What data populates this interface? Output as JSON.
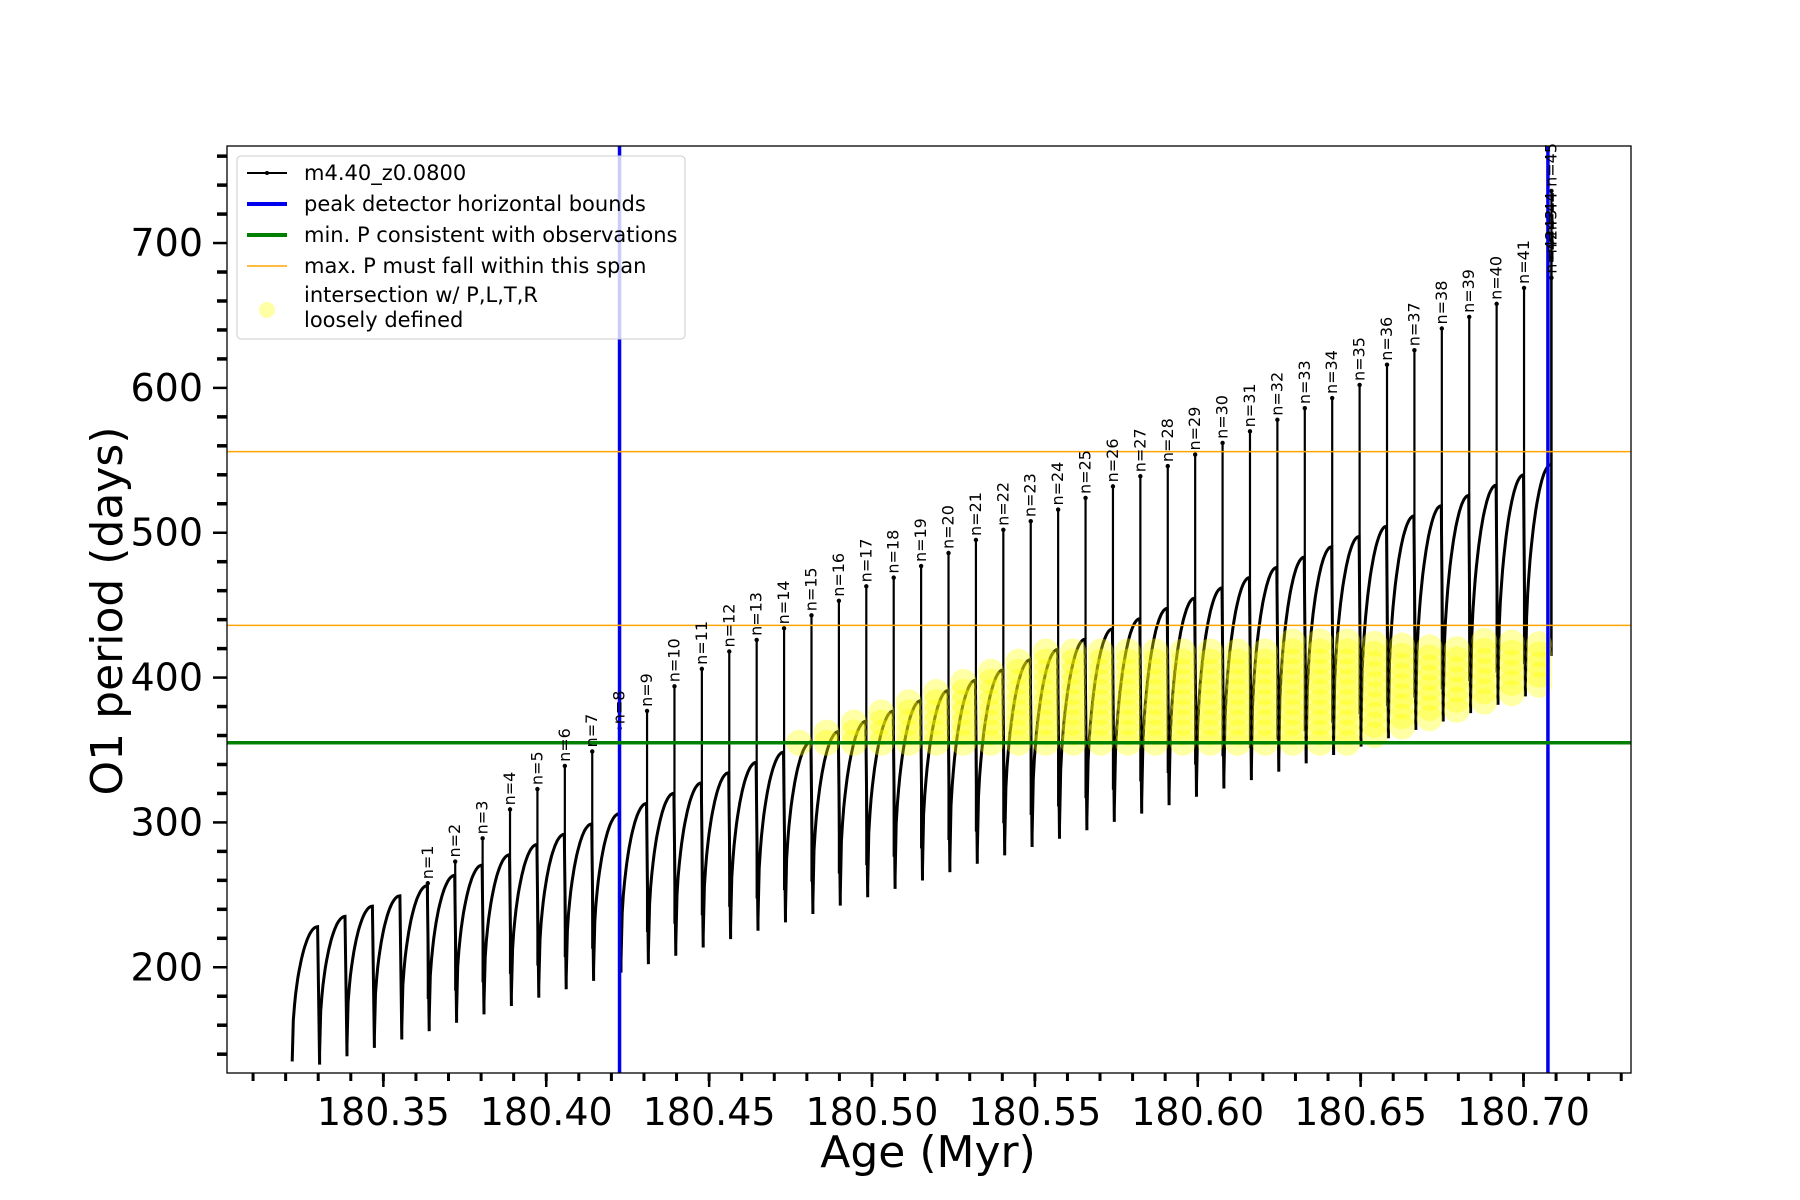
{
  "chart_data": {
    "type": "line",
    "xlabel": "Age (Myr)",
    "ylabel": "O1 period (days)",
    "xlim": [
      180.302,
      180.733
    ],
    "ylim": [
      127,
      767
    ],
    "x_ticks": [
      180.35,
      180.4,
      180.45,
      180.5,
      180.55,
      180.6,
      180.65,
      180.7
    ],
    "x_tick_labels": [
      "180.35",
      "180.40",
      "180.45",
      "180.50",
      "180.55",
      "180.60",
      "180.65",
      "180.70"
    ],
    "y_ticks": [
      200,
      300,
      400,
      500,
      600,
      700
    ],
    "y_tick_labels": [
      "200",
      "300",
      "400",
      "500",
      "600",
      "700"
    ],
    "grid": false,
    "legend_position": "top-left",
    "series": [
      {
        "name": "m4.40_z0.0800",
        "color": "#000000",
        "style": "line-with-dot-markers",
        "cycle_start_age": 180.322,
        "cycle_spacing": 0.0087,
        "num_cycles": 46,
        "min_period_start": 135,
        "min_period_end": 395,
        "max_period_start": 228,
        "max_period_end": 547,
        "peak_labels": [
          {
            "label": "n=1",
            "x": 180.3618,
            "y": 262
          },
          {
            "label": "n=2",
            "x": 180.3716,
            "y": 277
          },
          {
            "label": "n=3",
            "x": 180.3814,
            "y": 293
          },
          {
            "label": "n=4",
            "x": 180.3912,
            "y": 313
          },
          {
            "label": "n=5",
            "x": 180.401,
            "y": 327
          },
          {
            "label": "n=6",
            "x": 180.4108,
            "y": 343
          },
          {
            "label": "n=7",
            "x": 180.4206,
            "y": 353
          },
          {
            "label": "n=8",
            "x": 180.4306,
            "y": 369
          },
          {
            "label": "n=9",
            "x": 180.4404,
            "y": 381
          },
          {
            "label": "n=10",
            "x": 180.4502,
            "y": 398
          },
          {
            "label": "n=11",
            "x": 180.4688,
            "y": 410
          },
          {
            "label": "n=12",
            "x": 180.4786,
            "y": 422
          },
          {
            "label": "n=13",
            "x": 180.4884,
            "y": 430
          },
          {
            "label": "n=14",
            "x": 180.4982,
            "y": 438
          },
          {
            "label": "n=15",
            "x": 180.508,
            "y": 447
          },
          {
            "label": "n=16",
            "x": 180.518,
            "y": 457
          },
          {
            "label": "n=17",
            "x": 180.528,
            "y": 467
          },
          {
            "label": "n=18",
            "x": 180.537,
            "y": 473
          },
          {
            "label": "n=19",
            "x": 180.546,
            "y": 481
          },
          {
            "label": "n=20",
            "x": 180.556,
            "y": 490
          },
          {
            "label": "n=21",
            "x": 180.566,
            "y": 499
          },
          {
            "label": "n=22",
            "x": 180.575,
            "y": 506
          },
          {
            "label": "n=23",
            "x": 180.584,
            "y": 512
          },
          {
            "label": "n=24",
            "x": 180.594,
            "y": 520
          },
          {
            "label": "n=25",
            "x": 180.603,
            "y": 528
          },
          {
            "label": "n=26",
            "x": 180.612,
            "y": 536
          },
          {
            "label": "n=27",
            "x": 180.622,
            "y": 543
          },
          {
            "label": "n=28",
            "x": 180.631,
            "y": 550
          },
          {
            "label": "n=29",
            "x": 180.64,
            "y": 558
          },
          {
            "label": "n=30",
            "x": 180.65,
            "y": 566
          },
          {
            "label": "n=31",
            "x": 180.659,
            "y": 574
          },
          {
            "label": "n=32",
            "x": 180.668,
            "y": 582
          },
          {
            "label": "n=33",
            "x": 180.678,
            "y": 590
          },
          {
            "label": "n=34",
            "x": 180.687,
            "y": 597
          },
          {
            "label": "n=35",
            "x": 180.696,
            "y": 606
          },
          {
            "label": "n=36",
            "x": 180.6554,
            "y": 620
          },
          {
            "label": "n=37",
            "x": 180.6652,
            "y": 630
          },
          {
            "label": "n=38",
            "x": 180.6736,
            "y": 645
          },
          {
            "label": "n=39",
            "x": 180.681,
            "y": 653
          },
          {
            "label": "n=40",
            "x": 180.6866,
            "y": 662
          },
          {
            "label": "n=41",
            "x": 180.6922,
            "y": 673
          },
          {
            "label": "n=42",
            "x": 180.6982,
            "y": 680
          },
          {
            "label": "n=43",
            "x": 180.7021,
            "y": 694
          },
          {
            "label": "n=44",
            "x": 180.7047,
            "y": 706
          },
          {
            "label": "n=45",
            "x": 180.7072,
            "y": 740
          }
        ]
      },
      {
        "name": "peak detector horizontal bounds",
        "color": "#0000ee",
        "type": "vline",
        "x": [
          180.4225,
          180.7075
        ]
      },
      {
        "name": "min. P consistent with observations",
        "color": "#008000",
        "type": "hline",
        "y": 355
      },
      {
        "name": "max. P must fall within this span",
        "color": "#ffa500",
        "type": "hline",
        "y": [
          436,
          556
        ]
      },
      {
        "name": "intersection w/ P,L,T,R\nloosely defined",
        "color": "#ffff00",
        "type": "scatter",
        "y_range": [
          355,
          436
        ],
        "x_range": [
          180.42,
          180.71
        ]
      }
    ]
  },
  "legend": {
    "items": [
      {
        "label": "m4.40_z0.0800",
        "color": "#000000",
        "style": "line"
      },
      {
        "label": "peak detector horizontal bounds",
        "color": "#0000ee",
        "style": "thick"
      },
      {
        "label": "min. P consistent with observations",
        "color": "#008000",
        "style": "thick"
      },
      {
        "label": "max. P must fall within this span",
        "color": "#ffa500",
        "style": "thin"
      },
      {
        "label": "intersection w/ P,L,T,R",
        "label2": "loosely defined",
        "color": "#ffff00",
        "style": "dot"
      }
    ]
  }
}
